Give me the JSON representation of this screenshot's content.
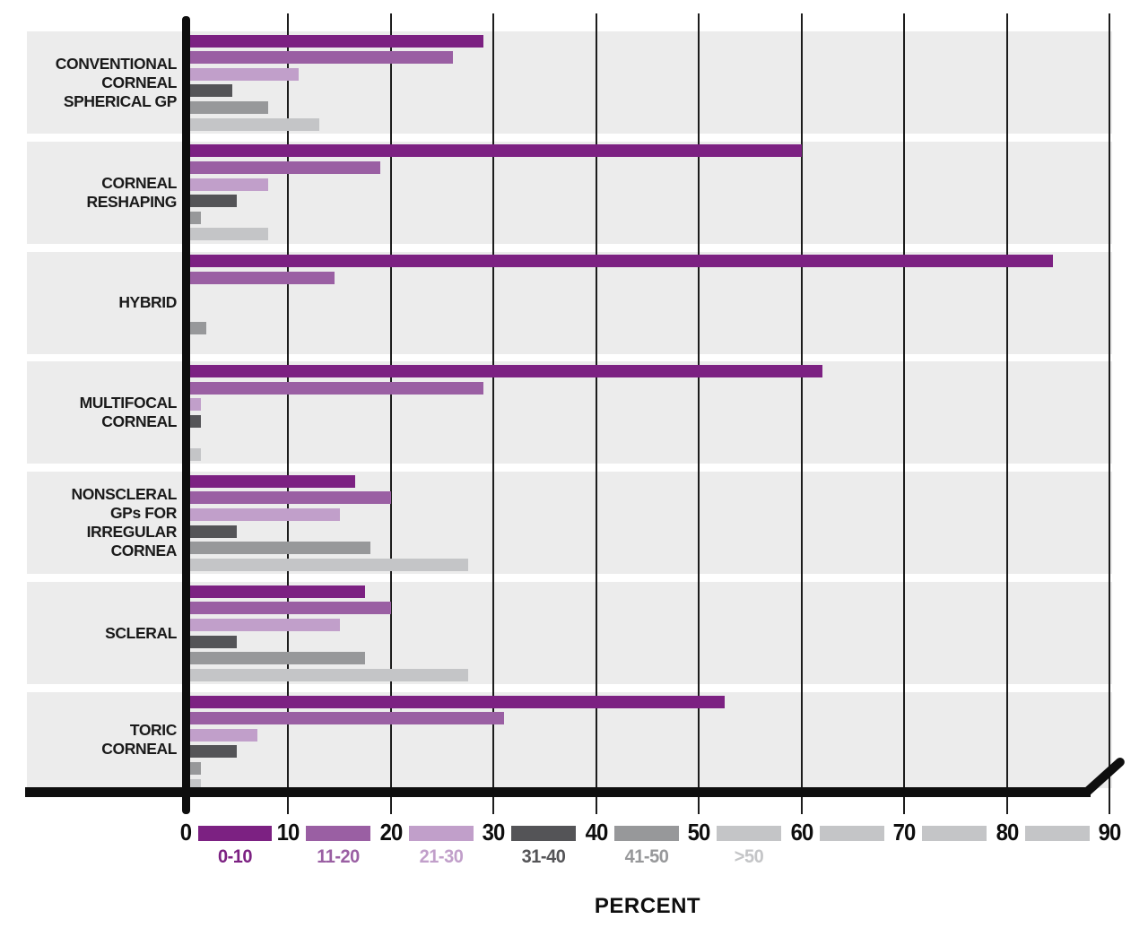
{
  "chart_data": {
    "type": "bar",
    "orientation": "horizontal",
    "title": "",
    "xlabel": "PERCENT",
    "xlim": [
      0,
      90
    ],
    "xticks": [
      "0",
      "10",
      "20",
      "30",
      "40",
      "50",
      "60",
      "70",
      "80",
      "90"
    ],
    "grid": "vertical",
    "legend_position": "bottom",
    "categories": [
      {
        "label": "CONVENTIONAL CORNEAL SPHERICAL GP",
        "lines": [
          "CONVENTIONAL",
          "CORNEAL",
          "SPHERICAL GP"
        ]
      },
      {
        "label": "CORNEAL RESHAPING",
        "lines": [
          "CORNEAL",
          "RESHAPING"
        ]
      },
      {
        "label": "HYBRID",
        "lines": [
          "HYBRID"
        ]
      },
      {
        "label": "MULTIFOCAL CORNEAL",
        "lines": [
          "MULTIFOCAL",
          "CORNEAL"
        ]
      },
      {
        "label": "NONSCLERAL GPs FOR IRREGULAR CORNEA",
        "lines": [
          "NONSCLERAL",
          "GPs FOR",
          "IRREGULAR",
          "CORNEA"
        ]
      },
      {
        "label": "SCLERAL",
        "lines": [
          "SCLERAL"
        ]
      },
      {
        "label": "TORIC CORNEAL",
        "lines": [
          "TORIC",
          "CORNEAL"
        ]
      }
    ],
    "series": [
      {
        "name": "0-10",
        "color": "#7c2182",
        "values": [
          29,
          60,
          84.5,
          62,
          16.5,
          17.5,
          52.5
        ]
      },
      {
        "name": "11-20",
        "color": "#9a5fa3",
        "values": [
          26,
          19,
          14.5,
          29,
          20,
          20,
          31
        ]
      },
      {
        "name": "21-30",
        "color": "#c19fca",
        "values": [
          11,
          8,
          0,
          1.5,
          15,
          15,
          7
        ]
      },
      {
        "name": "31-40",
        "color": "#545457",
        "values": [
          4.5,
          5,
          0,
          1.5,
          5,
          5,
          5
        ]
      },
      {
        "name": "41-50",
        "color": "#97989a",
        "values": [
          8,
          1.5,
          2,
          0,
          18,
          17.5,
          1.5
        ]
      },
      {
        "name": ">50",
        "color": "#c4c5c7",
        "values": [
          13,
          8,
          0,
          1.5,
          27.5,
          27.5,
          1.5
        ]
      }
    ],
    "axis_ribbon_swatch_colors": [
      "#7c2182",
      "#9a5fa3",
      "#c19fca",
      "#545457",
      "#97989a",
      "#c4c5c7",
      "#c4c5c7",
      "#c4c5c7",
      "#c4c5c7"
    ],
    "colors": {
      "band_background": "#ececec",
      "axis": "#0e0e0e",
      "gridline": "#1c1c1c",
      "tick_text": "#0e0e0e",
      "category_text": "#1a1a1a"
    }
  }
}
